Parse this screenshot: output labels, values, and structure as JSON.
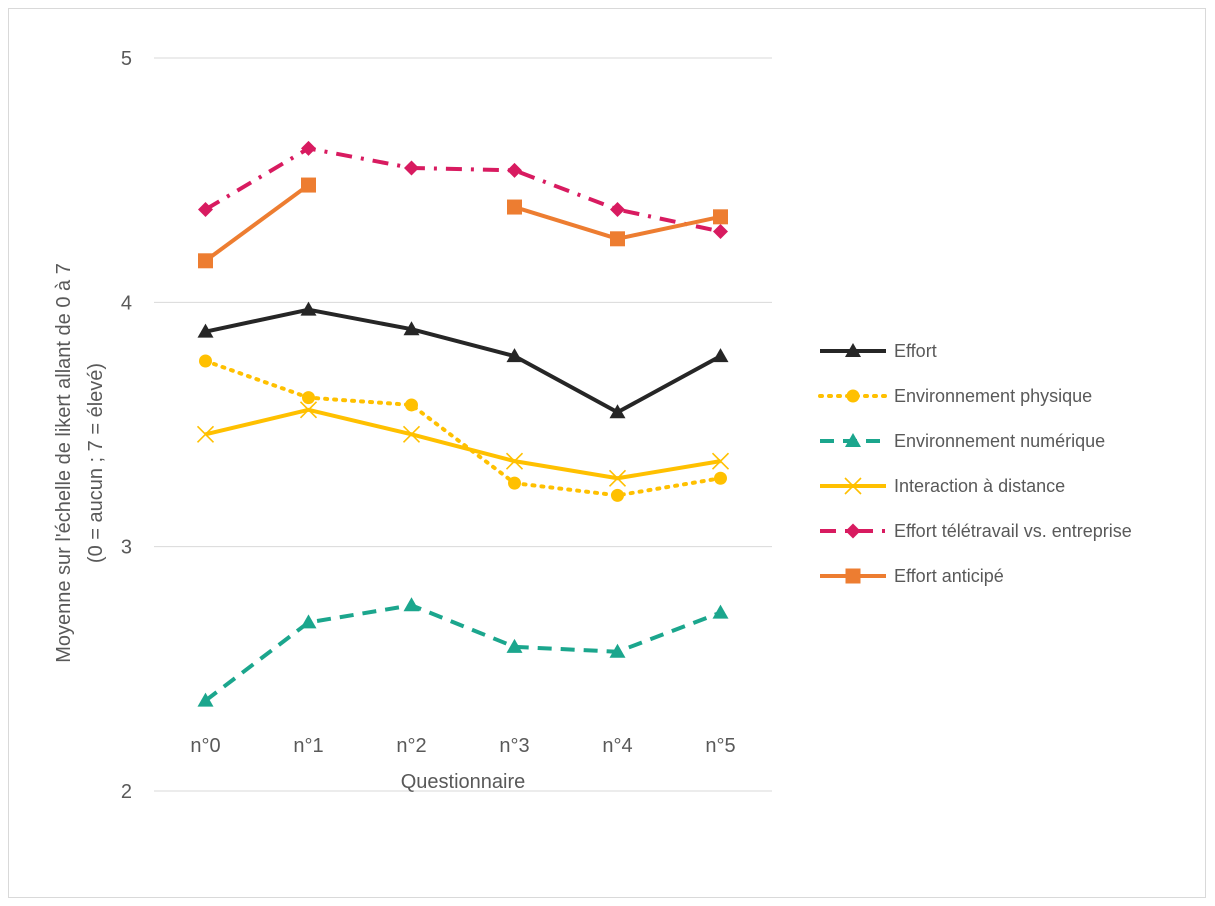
{
  "chart_data": {
    "type": "line",
    "categories": [
      "n°0",
      "n°1",
      "n°2",
      "n°3",
      "n°4",
      "n°5"
    ],
    "xlabel": "Questionnaire",
    "ylabel_line1": "Moyenne sur l'échelle de likert allant de 0 à 7",
    "ylabel_line2": "(0 = aucun ; 7 = élevé)",
    "ylim": [
      2,
      5
    ],
    "yticks": [
      2,
      3,
      4,
      5
    ],
    "grid": true,
    "legend": "right",
    "series": [
      {
        "name": "Effort",
        "color": "#262626",
        "dash": "solid",
        "marker": "triangle",
        "values": [
          3.88,
          3.97,
          3.89,
          3.78,
          3.55,
          3.78
        ]
      },
      {
        "name": "Environnement physique",
        "color": "#FFC000",
        "dash": "dot",
        "marker": "circle",
        "values": [
          3.76,
          3.61,
          3.58,
          3.26,
          3.21,
          3.28
        ]
      },
      {
        "name": "Environnement numérique",
        "color": "#1BA68D",
        "dash": "dash",
        "marker": "triangle",
        "values": [
          2.37,
          2.69,
          2.76,
          2.59,
          2.57,
          2.73
        ]
      },
      {
        "name": "Interaction à distance",
        "color": "#FFC000",
        "dash": "solid",
        "marker": "x",
        "values": [
          3.46,
          3.56,
          3.46,
          3.35,
          3.28,
          3.35
        ]
      },
      {
        "name": "Effort télétravail vs. entreprise",
        "color": "#D81B60",
        "dash": "dashdot",
        "marker": "diamond",
        "values": [
          4.38,
          4.63,
          4.55,
          4.54,
          4.38,
          4.29
        ]
      },
      {
        "name": "Effort anticipé",
        "color": "#ED7D31",
        "dash": "solid",
        "marker": "square",
        "values": [
          4.17,
          4.48,
          null,
          4.39,
          4.26,
          4.35
        ]
      }
    ]
  }
}
